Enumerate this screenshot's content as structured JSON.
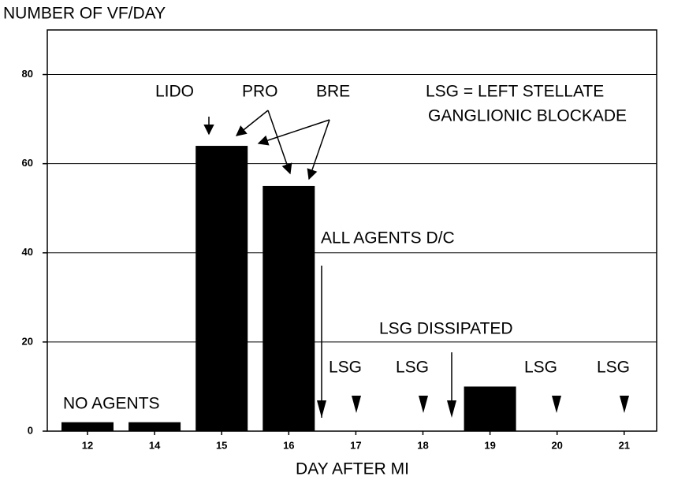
{
  "chart_data": {
    "type": "bar",
    "title": "NUMBER OF VF/DAY",
    "x_label": "DAY AFTER MI",
    "categories": [
      "12",
      "14",
      "15",
      "16",
      "17",
      "18",
      "19",
      "20",
      "21"
    ],
    "values": [
      2,
      2,
      64,
      55,
      0,
      0,
      10,
      0,
      0
    ],
    "color": "#000000",
    "ylim": [
      0,
      90
    ],
    "yticks": [
      0,
      20,
      40,
      60,
      80
    ],
    "grid": true,
    "annotations": [
      "NO AGENTS",
      "LIDO",
      "PRO",
      "BRE",
      "LSG = LEFT STELLATE",
      "GANGLIONIC BLOCKADE",
      "ALL AGENTS D/C",
      "LSG DISSIPATED",
      "LSG",
      "LSG",
      "LSG",
      "LSG"
    ]
  }
}
